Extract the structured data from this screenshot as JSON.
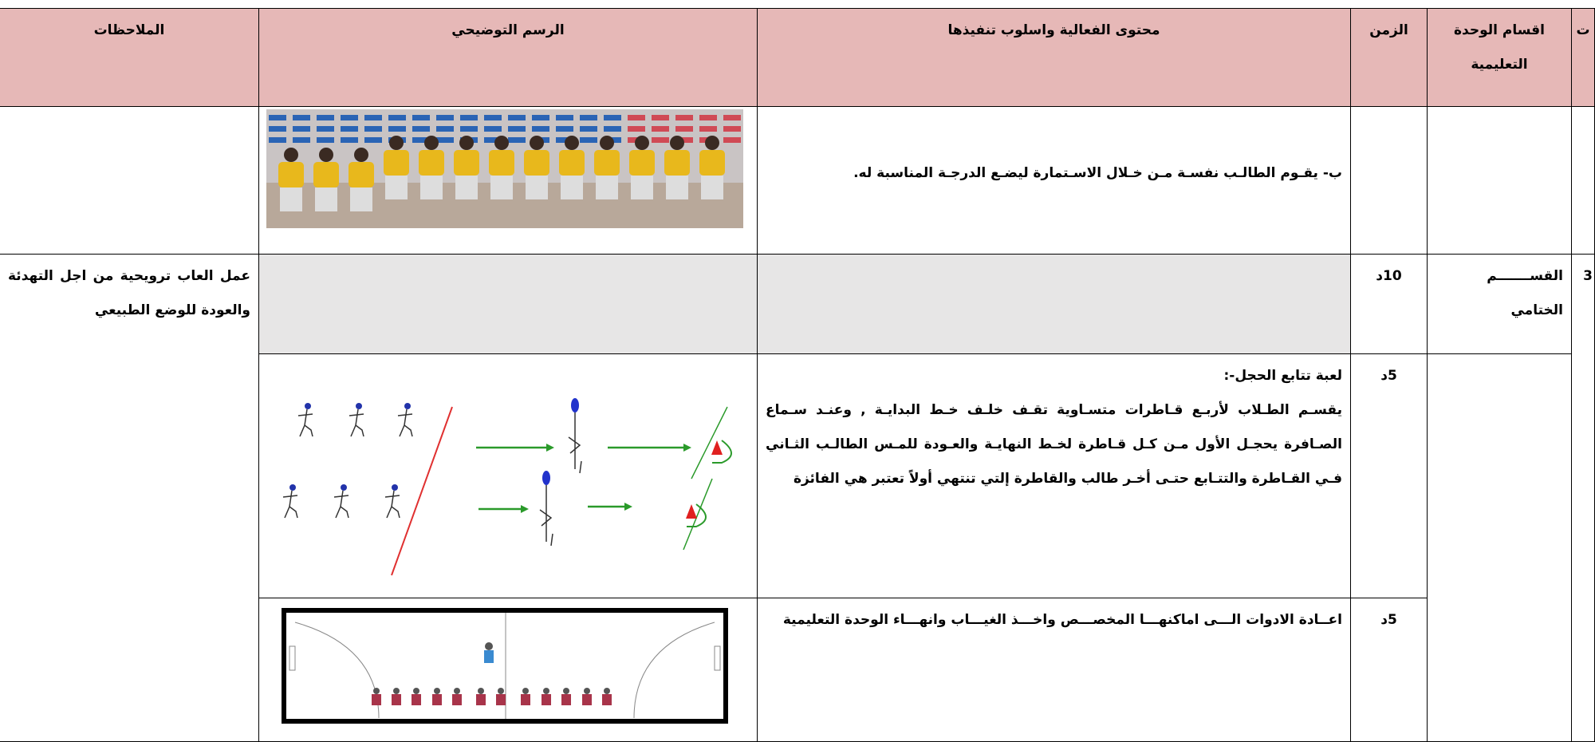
{
  "header": {
    "number": "ت",
    "section": "اقسام الوحدة التعليمية",
    "time": "الزمن",
    "content": "محتوى الفعالية واسلوب تنفيذها",
    "illustration": "الرسم التوضيحي",
    "notes": "الملاحظات"
  },
  "rows": [
    {
      "content": "ب- يقـوم الطالـب نفسـة مـن خـلال الاسـتمارة ليضـع الدرجـة المناسبة له."
    },
    {
      "number": "3",
      "section": "القســـــــم الختامي",
      "time": "10د",
      "notes": "عمل العاب ترويحية من اجل التهدئة والعودة للوضع الطبيعي"
    },
    {
      "time": "5د",
      "title": "لعبة تتابع الحجل-:",
      "content": "يقسـم الطـلاب لأربـع قـاطرات متسـاوية تقـف خلـف خـط البدايـة , وعنـد سـماع الصـافرة يحجـل الأول مـن كـل قـاطرة لخـط النهايـة والعـودة للمـس الطالـب الثـاني فـي القـاطرة والتتـابع حتـى أخـر طالب والقاطرة إلتي تنتهي أولاً تعتبر هي الفائزة"
    },
    {
      "time": "5د",
      "content": "اعــادة الادوات الـــى اماكنهـــا المخصـــص واخـــذ الغيـــاب وانهـــاء الوحدة التعليمية"
    }
  ]
}
